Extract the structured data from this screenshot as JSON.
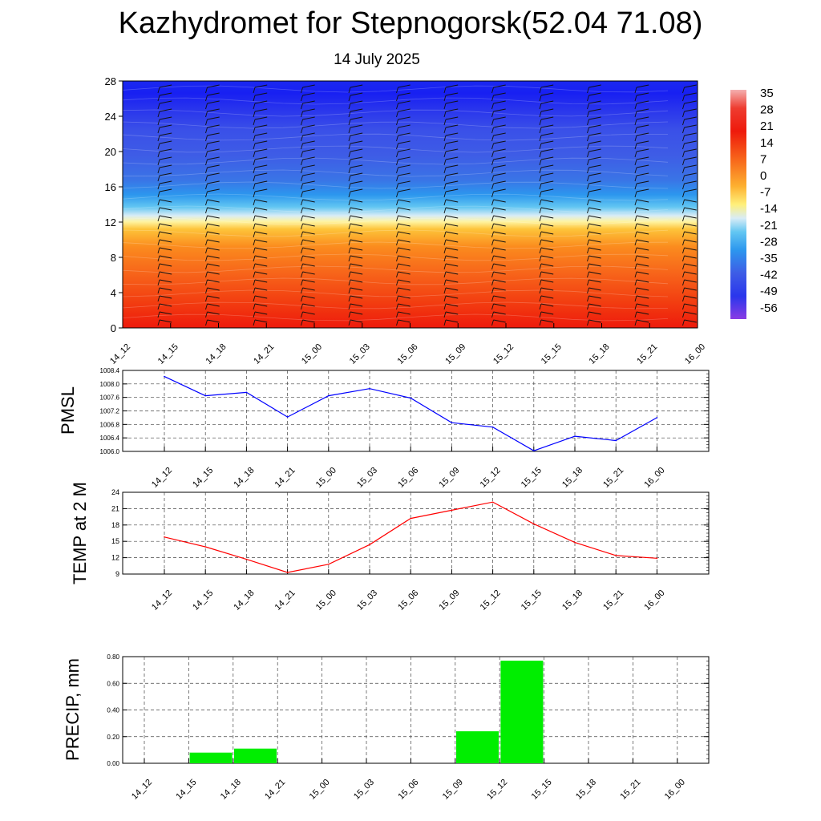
{
  "header": {
    "title": "Kazhydromet for Stepnogorsk(52.04 71.08)",
    "date": "14 July 2025"
  },
  "chart_data": [
    {
      "type": "heatmap",
      "name": "upper-air cross-section",
      "x": [
        "14_12",
        "14_15",
        "14_18",
        "14_21",
        "15_00",
        "15_03",
        "15_06",
        "15_09",
        "15_12",
        "15_15",
        "15_18",
        "15_21",
        "16_00"
      ],
      "yticks": [
        0,
        4,
        8,
        12,
        16,
        20,
        24,
        28
      ],
      "ylim": [
        0,
        28
      ],
      "colorbar_ticks": [
        35,
        28,
        21,
        14,
        7,
        0,
        -7,
        -14,
        -21,
        -28,
        -35,
        -42,
        -49,
        -56
      ],
      "overlay": "wind barbs"
    },
    {
      "type": "line",
      "ylabel": "PMSL",
      "x": [
        "14_12",
        "14_15",
        "14_18",
        "14_21",
        "15_00",
        "15_03",
        "15_06",
        "15_09",
        "15_12",
        "15_15",
        "15_18",
        "15_21",
        "16_00"
      ],
      "yticks": [
        "1006.0",
        "1006.4",
        "1006.8",
        "1007.2",
        "1007.6",
        "1008.0",
        "1008.4"
      ],
      "ylim": [
        1006.0,
        1008.4
      ],
      "values": [
        1008.22,
        1007.65,
        1007.75,
        1007.02,
        1007.65,
        1007.86,
        1007.58,
        1006.85,
        1006.72,
        1006.02,
        1006.45,
        1006.32,
        1007.0
      ],
      "color": "#0000ff",
      "grid": true
    },
    {
      "type": "line",
      "ylabel": "TEMP at 2 M",
      "x": [
        "14_12",
        "14_15",
        "14_18",
        "14_21",
        "15_00",
        "15_03",
        "15_06",
        "15_09",
        "15_12",
        "15_15",
        "15_18",
        "15_21",
        "16_00"
      ],
      "yticks": [
        "9",
        "12",
        "15",
        "18",
        "21",
        "24"
      ],
      "ylim": [
        9,
        24
      ],
      "values": [
        15.8,
        14.0,
        11.7,
        9.3,
        10.8,
        14.4,
        19.2,
        20.7,
        22.2,
        18.2,
        14.8,
        12.4,
        11.9
      ],
      "color": "#ff0000",
      "grid": true
    },
    {
      "type": "bar",
      "ylabel": "PRECIP, mm",
      "categories": [
        "14_12",
        "14_15",
        "14_18",
        "14_21",
        "15_00",
        "15_03",
        "15_06",
        "15_09",
        "15_12",
        "15_15",
        "15_18",
        "15_21",
        "16_00"
      ],
      "yticks": [
        "0.00",
        "0.20",
        "0.40",
        "0.60",
        "0.80"
      ],
      "ylim": [
        0,
        0.8
      ],
      "values": [
        0,
        0.08,
        0.11,
        0,
        0,
        0,
        0,
        0.24,
        0.77,
        0,
        0,
        0,
        0
      ],
      "color": "#00ee00",
      "grid": true
    }
  ]
}
